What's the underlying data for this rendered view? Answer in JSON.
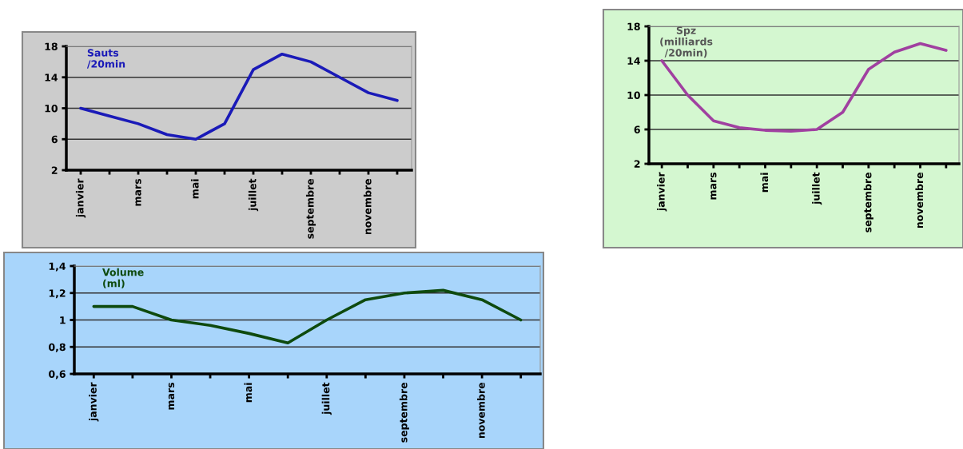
{
  "chart_data": [
    {
      "type": "line",
      "title": "Sauts\n/20min",
      "categories": [
        "janvier",
        null,
        "mars",
        null,
        "mai",
        null,
        "juillet",
        null,
        "septembre",
        null,
        "novembre",
        null
      ],
      "series": [
        {
          "color": "#1a1ab8",
          "values": [
            10,
            9,
            8,
            6.6,
            6,
            8,
            15,
            17,
            16,
            14,
            12,
            11
          ]
        }
      ],
      "ylim": [
        2,
        18
      ],
      "yticks": [
        2,
        6,
        10,
        14,
        18
      ],
      "grid": "y",
      "marker": "none",
      "line_style": "solid"
    },
    {
      "type": "line",
      "title": "Spz\n(milliards\n/20min)",
      "categories": [
        "janvier",
        null,
        "mars",
        null,
        "mai",
        null,
        "juillet",
        null,
        "septembre",
        null,
        "novembre",
        null
      ],
      "series": [
        {
          "color": "#a040a0",
          "values": [
            14,
            10,
            7,
            6.2,
            5.9,
            5.8,
            6,
            8,
            13,
            15,
            16,
            15.2
          ]
        }
      ],
      "ylim": [
        2,
        18
      ],
      "yticks": [
        2,
        6,
        10,
        14,
        18
      ],
      "grid": "y",
      "marker": "none",
      "line_style": "solid"
    },
    {
      "type": "line",
      "title": "Volume\n(ml)",
      "categories": [
        "janvier",
        null,
        "mars",
        null,
        "mai",
        null,
        "juillet",
        null,
        "septembre",
        null,
        "novembre",
        null
      ],
      "series": [
        {
          "color": "#0e4a0e",
          "values": [
            1.1,
            1.1,
            1.0,
            0.96,
            0.9,
            0.83,
            1.0,
            1.15,
            1.2,
            1.22,
            1.15,
            1.0
          ]
        }
      ],
      "ylim": [
        0.6,
        1.4
      ],
      "yticks": [
        {
          "value": 0.6,
          "label": "0,6"
        },
        {
          "value": 0.8,
          "label": "0,8"
        },
        {
          "value": 1,
          "label": "1"
        },
        {
          "value": 1.2,
          "label": "1,2"
        },
        {
          "value": 1.4,
          "label": "1,4"
        }
      ],
      "grid": "y",
      "marker": "none",
      "line_style": "solid"
    }
  ]
}
